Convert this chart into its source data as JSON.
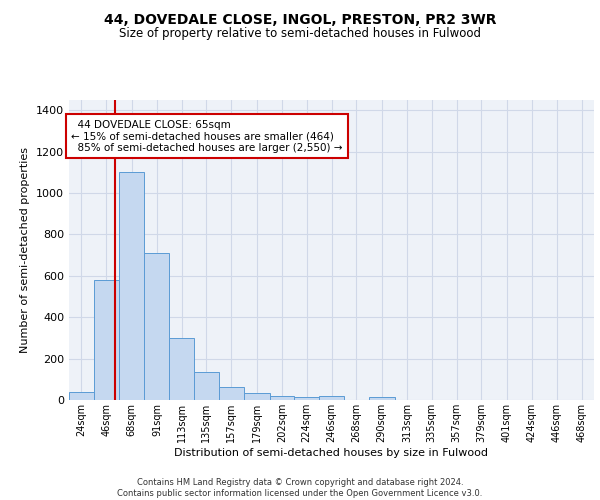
{
  "title": "44, DOVEDALE CLOSE, INGOL, PRESTON, PR2 3WR",
  "subtitle": "Size of property relative to semi-detached houses in Fulwood",
  "xlabel": "Distribution of semi-detached houses by size in Fulwood",
  "ylabel": "Number of semi-detached properties",
  "footer_line1": "Contains HM Land Registry data © Crown copyright and database right 2024.",
  "footer_line2": "Contains public sector information licensed under the Open Government Licence v3.0.",
  "bin_labels": [
    "24sqm",
    "46sqm",
    "68sqm",
    "91sqm",
    "113sqm",
    "135sqm",
    "157sqm",
    "179sqm",
    "202sqm",
    "224sqm",
    "246sqm",
    "268sqm",
    "290sqm",
    "313sqm",
    "335sqm",
    "357sqm",
    "379sqm",
    "401sqm",
    "424sqm",
    "446sqm",
    "468sqm"
  ],
  "bin_edges": [
    24,
    46,
    68,
    91,
    113,
    135,
    157,
    179,
    202,
    224,
    246,
    268,
    290,
    313,
    335,
    357,
    379,
    401,
    424,
    446,
    468,
    490
  ],
  "bar_values": [
    40,
    580,
    1100,
    710,
    300,
    135,
    65,
    32,
    20,
    15,
    20,
    0,
    15,
    0,
    0,
    0,
    0,
    0,
    0,
    0,
    0
  ],
  "bar_color": "#c5d8f0",
  "bar_edge_color": "#5b9bd5",
  "property_size": 65,
  "pct_smaller": 15,
  "pct_smaller_count": 464,
  "pct_larger": 85,
  "pct_larger_count": 2550,
  "vline_color": "#cc0000",
  "ylim": [
    0,
    1450
  ],
  "yticks": [
    0,
    200,
    400,
    600,
    800,
    1000,
    1200,
    1400
  ],
  "annotation_box_color": "#cc0000",
  "grid_color": "#d0d8e8",
  "bg_color": "#eef2f8",
  "title_fontsize": 10,
  "subtitle_fontsize": 8.5
}
